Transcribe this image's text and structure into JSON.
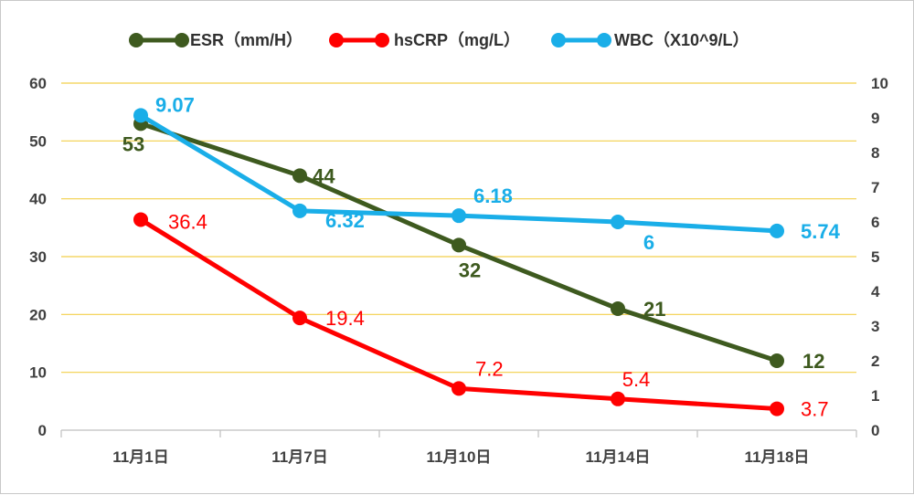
{
  "chart_data": {
    "type": "line",
    "categories": [
      "11月1日",
      "11月7日",
      "11月10日",
      "11月14日",
      "11月18日"
    ],
    "left_axis": {
      "ylim": [
        0,
        60
      ],
      "ticks": [
        0,
        10,
        20,
        30,
        40,
        50,
        60
      ]
    },
    "right_axis": {
      "ylim": [
        0,
        10
      ],
      "ticks": [
        0,
        1,
        2,
        3,
        4,
        5,
        6,
        7,
        8,
        9,
        10
      ]
    },
    "grid": true,
    "legend_position": "top",
    "series": [
      {
        "name": "ESR（mm/H）",
        "axis": "left",
        "color": "#3e5a1f",
        "values": [
          53,
          44,
          32,
          21,
          12
        ],
        "labels": [
          "53",
          "44",
          "32",
          "21",
          "12"
        ]
      },
      {
        "name": "hsCRP（mg/L）",
        "axis": "left",
        "color": "#ff0000",
        "values": [
          36.4,
          19.4,
          7.2,
          5.4,
          3.7
        ],
        "labels": [
          "36.4",
          "19.4",
          "7.2",
          "5.4",
          "3.7"
        ]
      },
      {
        "name": "WBC（X10^9/L）",
        "axis": "right",
        "color": "#1aaee8",
        "values": [
          9.07,
          6.32,
          6.18,
          6,
          5.74
        ],
        "labels": [
          "9.07",
          "6.32",
          "6.18",
          "6",
          "5.74"
        ]
      }
    ]
  }
}
